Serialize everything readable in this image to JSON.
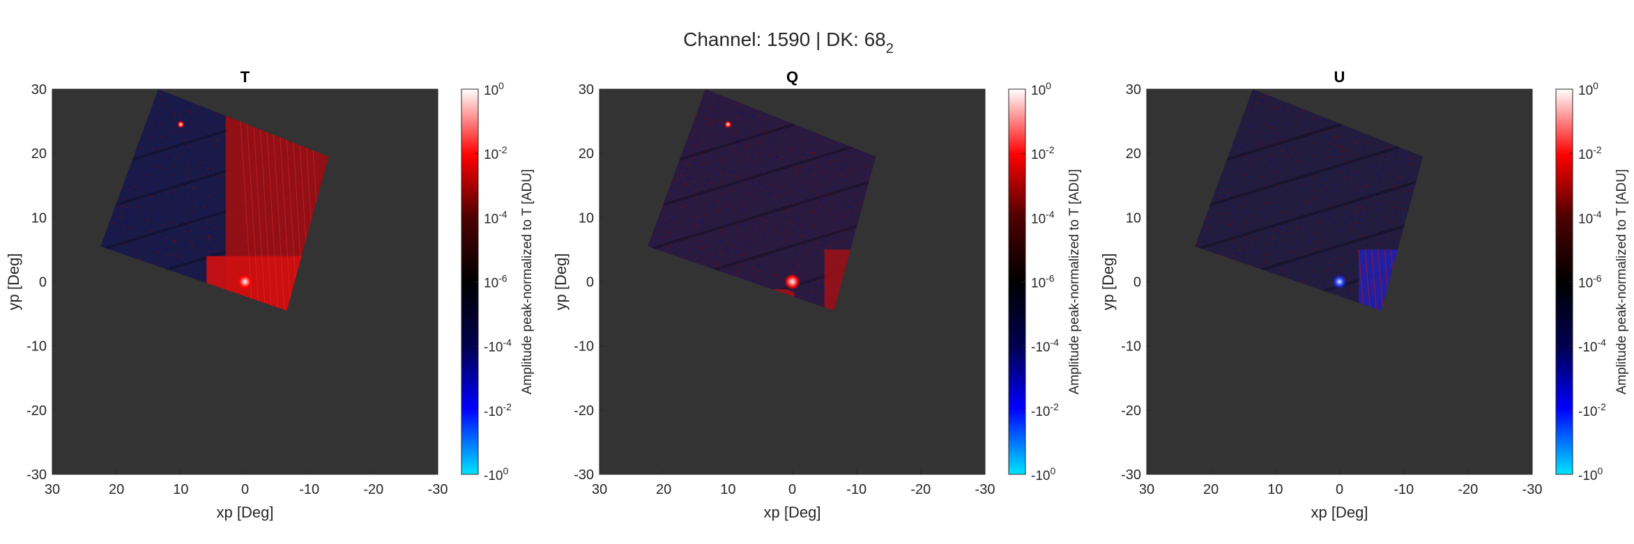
{
  "figure": {
    "suptitle_main": "Channel: 1590 | DK: 68",
    "suptitle_sub": "2"
  },
  "colors": {
    "axes_background": "#333333",
    "colormap": [
      "#00e5ff",
      "#0000ff",
      "#000050",
      "#000000",
      "#500000",
      "#ff0000",
      "#ffffff"
    ]
  },
  "chart_data": [
    {
      "type": "heatmap",
      "title": "T",
      "xlabel": "xp [Deg]",
      "ylabel": "yp [Deg]",
      "xlim": [
        30,
        -30
      ],
      "ylim": [
        -30,
        30
      ],
      "xticks": [
        "30",
        "20",
        "10",
        "0",
        "-10",
        "-20",
        "-30"
      ],
      "yticks": [
        "30",
        "20",
        "10",
        "0",
        "-10",
        "-20",
        "-30"
      ],
      "colorbar": {
        "label": "Amplitude peak-normalized to T [ADU]",
        "ticks": [
          {
            "base": "10",
            "exp": "0"
          },
          {
            "base": "10",
            "exp": "-2"
          },
          {
            "base": "10",
            "exp": "-4"
          },
          {
            "base": "10",
            "exp": "-6"
          },
          {
            "base": "-10",
            "exp": "-4"
          },
          {
            "base": "-10",
            "exp": "-2"
          },
          {
            "base": "-10",
            "exp": "0"
          }
        ]
      },
      "map_footprint_deg": [
        [
          13.5,
          30
        ],
        [
          -13,
          19.5
        ],
        [
          -6.5,
          -4.5
        ],
        [
          22.5,
          5.5
        ]
      ],
      "hot_spots": [
        {
          "x": 0,
          "y": 0,
          "value": 1.0,
          "sign": "positive"
        },
        {
          "x": 10,
          "y": 24.5,
          "value": 0.001,
          "sign": "positive"
        }
      ],
      "dominant_sign_region": "positive (red) for xp < 3"
    },
    {
      "type": "heatmap",
      "title": "Q",
      "xlabel": "xp [Deg]",
      "ylabel": "yp [Deg]",
      "xlim": [
        30,
        -30
      ],
      "ylim": [
        -30,
        30
      ],
      "xticks": [
        "30",
        "20",
        "10",
        "0",
        "-10",
        "-20",
        "-30"
      ],
      "yticks": [
        "30",
        "20",
        "10",
        "0",
        "-10",
        "-20",
        "-30"
      ],
      "colorbar": {
        "label": "Amplitude peak-normalized to T [ADU]",
        "ticks": [
          {
            "base": "10",
            "exp": "0"
          },
          {
            "base": "10",
            "exp": "-2"
          },
          {
            "base": "10",
            "exp": "-4"
          },
          {
            "base": "10",
            "exp": "-6"
          },
          {
            "base": "-10",
            "exp": "-4"
          },
          {
            "base": "-10",
            "exp": "-2"
          },
          {
            "base": "-10",
            "exp": "0"
          }
        ]
      },
      "map_footprint_deg": [
        [
          13.5,
          30
        ],
        [
          -13,
          19.5
        ],
        [
          -6.5,
          -4.5
        ],
        [
          22.5,
          5.5
        ]
      ],
      "hot_spots": [
        {
          "x": 0,
          "y": 0,
          "value": 0.5,
          "sign": "positive"
        },
        {
          "x": 10,
          "y": 24.5,
          "value": 0.0005,
          "sign": "positive"
        }
      ],
      "dominant_sign_region": "mixed"
    },
    {
      "type": "heatmap",
      "title": "U",
      "xlabel": "xp [Deg]",
      "ylabel": "yp [Deg]",
      "xlim": [
        30,
        -30
      ],
      "ylim": [
        -30,
        30
      ],
      "xticks": [
        "30",
        "20",
        "10",
        "0",
        "-10",
        "-20",
        "-30"
      ],
      "yticks": [
        "30",
        "20",
        "10",
        "0",
        "-10",
        "-20",
        "-30"
      ],
      "colorbar": {
        "label": "Amplitude peak-normalized to T [ADU]",
        "ticks": [
          {
            "base": "10",
            "exp": "0"
          },
          {
            "base": "10",
            "exp": "-2"
          },
          {
            "base": "10",
            "exp": "-4"
          },
          {
            "base": "10",
            "exp": "-6"
          },
          {
            "base": "-10",
            "exp": "-4"
          },
          {
            "base": "-10",
            "exp": "-2"
          },
          {
            "base": "-10",
            "exp": "0"
          }
        ]
      },
      "map_footprint_deg": [
        [
          13.5,
          30
        ],
        [
          -13,
          19.5
        ],
        [
          -6.5,
          -4.5
        ],
        [
          22.5,
          5.5
        ]
      ],
      "hot_spots": [
        {
          "x": 0,
          "y": 0,
          "value": -0.01,
          "sign": "negative"
        }
      ],
      "dominant_sign_region": "mixed"
    }
  ]
}
